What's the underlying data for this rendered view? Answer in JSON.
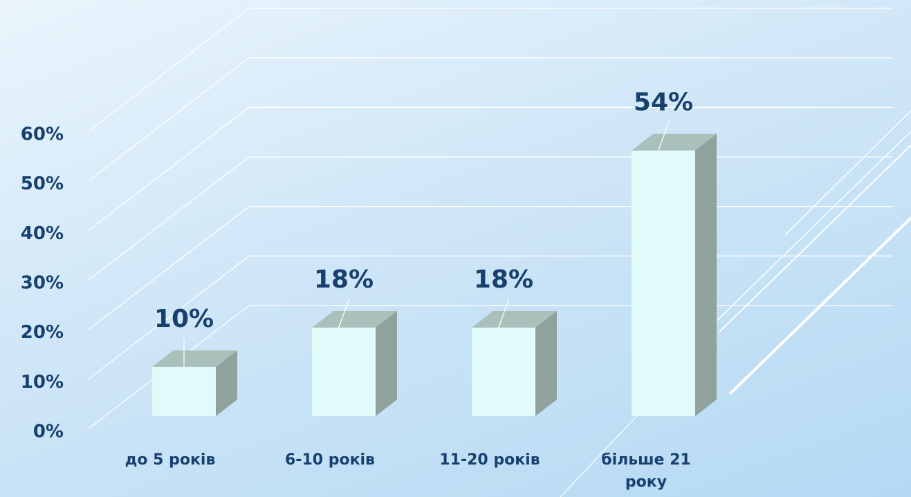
{
  "chart_data": {
    "type": "bar3d",
    "categories": [
      "до 5 років",
      "6-10 років",
      "11-20 років",
      "більше 21 року"
    ],
    "values": [
      10,
      18,
      18,
      54
    ],
    "value_labels": [
      "10%",
      "18%",
      "18%",
      "54%"
    ],
    "ylim": [
      0,
      60
    ],
    "yticks": [
      {
        "value": 0,
        "label": "0%"
      },
      {
        "value": 10,
        "label": "10%"
      },
      {
        "value": 20,
        "label": "20%"
      },
      {
        "value": 30,
        "label": "30%"
      },
      {
        "value": 40,
        "label": "40%"
      },
      {
        "value": 50,
        "label": "50%"
      },
      {
        "value": 60,
        "label": "60%"
      }
    ],
    "grid": true,
    "colors": {
      "front": "#e0fbf9",
      "top": "#aac0bb",
      "side": "#8fa29e"
    }
  }
}
